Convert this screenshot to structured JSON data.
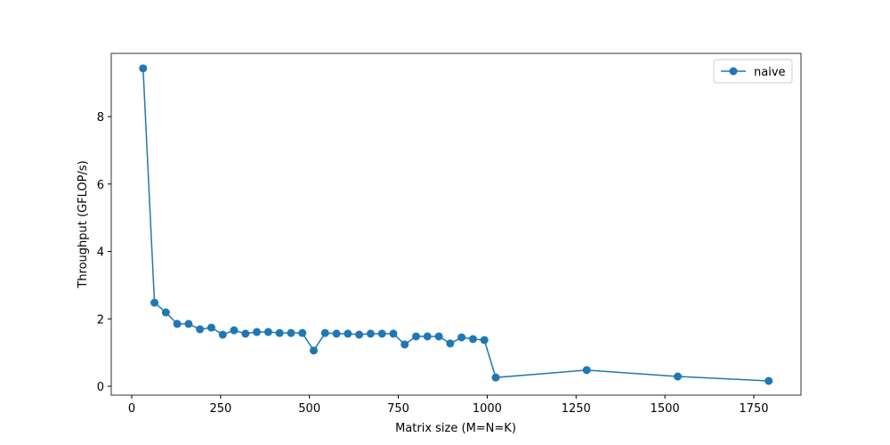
{
  "chart_data": {
    "type": "line",
    "xlabel": "Matrix size (M=N=K)",
    "ylabel": "Throughput (GFLOP/s)",
    "x": [
      32,
      64,
      96,
      128,
      160,
      192,
      224,
      256,
      288,
      320,
      352,
      384,
      416,
      448,
      480,
      512,
      544,
      576,
      608,
      640,
      672,
      704,
      736,
      768,
      800,
      832,
      864,
      896,
      928,
      960,
      992,
      1024,
      1280,
      1536,
      1792
    ],
    "series": [
      {
        "name": "naive",
        "color": "#1f77b4",
        "values": [
          9.43,
          2.48,
          2.19,
          1.85,
          1.85,
          1.69,
          1.74,
          1.53,
          1.66,
          1.56,
          1.61,
          1.61,
          1.58,
          1.58,
          1.58,
          1.06,
          1.58,
          1.56,
          1.56,
          1.53,
          1.56,
          1.56,
          1.56,
          1.24,
          1.48,
          1.48,
          1.48,
          1.27,
          1.45,
          1.4,
          1.37,
          0.26,
          0.48,
          0.29,
          0.16
        ]
      }
    ],
    "xlim": [
      -57.6,
      1882.8
    ],
    "ylim": [
      -0.264,
      9.875
    ],
    "xticks": [
      0,
      250,
      500,
      750,
      1000,
      1250,
      1500,
      1750
    ],
    "yticks": [
      0,
      2,
      4,
      6,
      8
    ],
    "legend": "upper right"
  }
}
